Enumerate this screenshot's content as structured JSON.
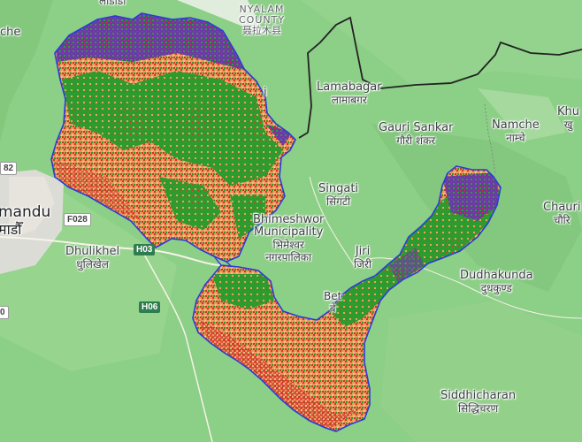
{
  "map": {
    "labels": {
      "nyalam": {
        "line1": "NYALAM",
        "line2": "COUNTY",
        "line3": "聂拉木县"
      },
      "lamabagar": {
        "en": "Lamabagar",
        "np": "लामाबगर"
      },
      "gauri_sankar": {
        "en": "Gauri Sankar",
        "np": "गौरी शंकर"
      },
      "namche": {
        "en": "Namche",
        "np": "नाम्चे"
      },
      "singati": {
        "en": "Singati",
        "np": "सिंगटी"
      },
      "bhimeshwor": {
        "line1": "Bhimeshwor",
        "line2": "Municipality",
        "np": "भिमेश्वर",
        "np2": "नगरपालिका"
      },
      "jiri": {
        "en": "Jiri",
        "np": "जिरी"
      },
      "dudhakunda": {
        "en": "Dudhakunda",
        "np": "दुधकुण्ड"
      },
      "chaurikharka": {
        "en": "Chauri",
        "np": "चौरि"
      },
      "dhulikhel": {
        "en": "Dhulikhel",
        "np": "धुलिखेल"
      },
      "kathmandu": {
        "en": "mandu",
        "np": "माडौँ"
      },
      "siddhicharan": {
        "en": "Siddhicharan",
        "np": "सिद्धिचरण"
      },
      "lapchi_partial": {
        "en": "लाडोडो"
      },
      "khumbu_partial": {
        "en": "Khu",
        "np": "खु"
      },
      "che_partial": {
        "en": "che"
      },
      "beta_partial": {
        "en": "Bet",
        "np": "बे"
      },
      "i_partial": {
        "en": "i"
      }
    },
    "roads": {
      "f028": "F028",
      "h03": "H03",
      "h06": "H06",
      "r82": "82",
      "r0": "0"
    },
    "colors": {
      "terrain": "#8ccf86",
      "boundary": "#2b3bd9",
      "border": "#222222",
      "classes": [
        "#2e9b2e",
        "#f0a05a",
        "#d8332a",
        "#7a3fa8",
        "#e8c98e"
      ]
    }
  }
}
